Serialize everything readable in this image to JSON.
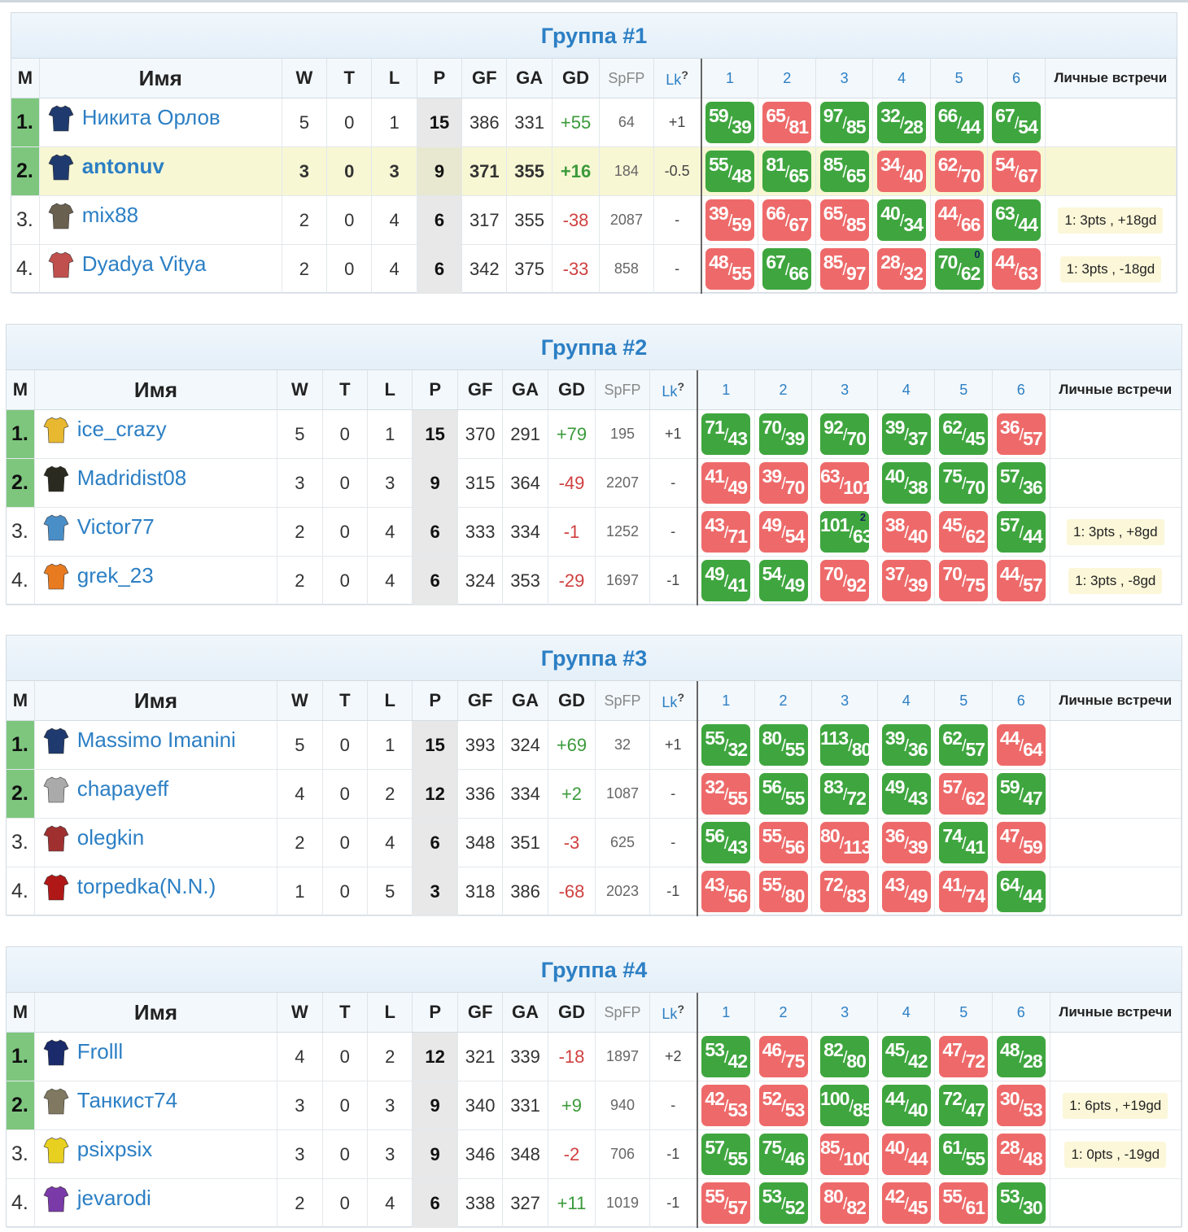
{
  "headers": {
    "m": "M",
    "name": "Имя",
    "w": "W",
    "t": "T",
    "l": "L",
    "p": "P",
    "gf": "GF",
    "ga": "GA",
    "gd": "GD",
    "spfp": "SpFP",
    "lk": "Lk",
    "lk_q": "?",
    "m1": "1",
    "m2": "2",
    "m3": "3",
    "m4": "4",
    "m5": "5",
    "m6": "6",
    "lv": "Личные встречи"
  },
  "groups": [
    {
      "title": "Группа #1",
      "rows": [
        {
          "pos": "1.",
          "q": true,
          "name": "Никита Орлов",
          "av": "#1f3a6e",
          "w": "5",
          "t": "0",
          "l": "1",
          "p": "15",
          "gf": "386",
          "ga": "331",
          "gd": "+55",
          "spfp": "64",
          "lk": "+1",
          "lv": "",
          "m": [
            [
              "59",
              "39",
              "w",
              ""
            ],
            [
              "65",
              "81",
              "l",
              ""
            ],
            [
              "97",
              "85",
              "w",
              ""
            ],
            [
              "32",
              "28",
              "w",
              ""
            ],
            [
              "66",
              "44",
              "w",
              ""
            ],
            [
              "67",
              "54",
              "w",
              ""
            ]
          ]
        },
        {
          "pos": "2.",
          "q": true,
          "hl": true,
          "name": "antonuv",
          "av": "#1f3a6e",
          "w": "3",
          "t": "0",
          "l": "3",
          "p": "9",
          "gf": "371",
          "ga": "355",
          "gd": "+16",
          "spfp": "184",
          "lk": "-0.5",
          "lv": "",
          "m": [
            [
              "55",
              "48",
              "w",
              ""
            ],
            [
              "81",
              "65",
              "w",
              ""
            ],
            [
              "85",
              "65",
              "w",
              ""
            ],
            [
              "34",
              "40",
              "l",
              ""
            ],
            [
              "62",
              "70",
              "l",
              ""
            ],
            [
              "54",
              "67",
              "l",
              ""
            ]
          ]
        },
        {
          "pos": "3.",
          "q": false,
          "name": "mix88",
          "av": "#6a6050",
          "w": "2",
          "t": "0",
          "l": "4",
          "p": "6",
          "gf": "317",
          "ga": "355",
          "gd": "-38",
          "spfp": "2087",
          "lk": "-",
          "lv": "1: 3pts , +18gd",
          "m": [
            [
              "39",
              "59",
              "l",
              ""
            ],
            [
              "66",
              "67",
              "l",
              ""
            ],
            [
              "65",
              "85",
              "l",
              ""
            ],
            [
              "40",
              "34",
              "w",
              ""
            ],
            [
              "44",
              "66",
              "l",
              ""
            ],
            [
              "63",
              "44",
              "w",
              ""
            ]
          ]
        },
        {
          "pos": "4.",
          "q": false,
          "name": "Dyadya Vitya",
          "av": "#c0504d",
          "w": "2",
          "t": "0",
          "l": "4",
          "p": "6",
          "gf": "342",
          "ga": "375",
          "gd": "-33",
          "spfp": "858",
          "lk": "-",
          "lv": "1: 3pts , -18gd",
          "m": [
            [
              "48",
              "55",
              "l",
              ""
            ],
            [
              "67",
              "66",
              "w",
              ""
            ],
            [
              "85",
              "97",
              "l",
              ""
            ],
            [
              "28",
              "32",
              "l",
              ""
            ],
            [
              "70",
              "62",
              "w",
              "0"
            ],
            [
              "44",
              "63",
              "l",
              ""
            ]
          ]
        }
      ]
    },
    {
      "title": "Группа #2",
      "rows": [
        {
          "pos": "1.",
          "q": true,
          "name": "ice_crazy",
          "av": "#e8b830",
          "w": "5",
          "t": "0",
          "l": "1",
          "p": "15",
          "gf": "370",
          "ga": "291",
          "gd": "+79",
          "spfp": "195",
          "lk": "+1",
          "lv": "",
          "m": [
            [
              "71",
              "43",
              "w",
              ""
            ],
            [
              "70",
              "39",
              "w",
              ""
            ],
            [
              "92",
              "70",
              "w",
              ""
            ],
            [
              "39",
              "37",
              "w",
              ""
            ],
            [
              "62",
              "45",
              "w",
              ""
            ],
            [
              "36",
              "57",
              "l",
              ""
            ]
          ]
        },
        {
          "pos": "2.",
          "q": true,
          "name": "Madridist08",
          "av": "#2a2a20",
          "w": "3",
          "t": "0",
          "l": "3",
          "p": "9",
          "gf": "315",
          "ga": "364",
          "gd": "-49",
          "spfp": "2207",
          "lk": "-",
          "lv": "",
          "m": [
            [
              "41",
              "49",
              "l",
              ""
            ],
            [
              "39",
              "70",
              "l",
              ""
            ],
            [
              "63",
              "101",
              "l",
              ""
            ],
            [
              "40",
              "38",
              "w",
              ""
            ],
            [
              "75",
              "70",
              "w",
              ""
            ],
            [
              "57",
              "36",
              "w",
              ""
            ]
          ]
        },
        {
          "pos": "3.",
          "q": false,
          "name": "Victor77",
          "av": "#4a8ec8",
          "w": "2",
          "t": "0",
          "l": "4",
          "p": "6",
          "gf": "333",
          "ga": "334",
          "gd": "-1",
          "spfp": "1252",
          "lk": "-",
          "lv": "1: 3pts , +8gd",
          "m": [
            [
              "43",
              "71",
              "l",
              ""
            ],
            [
              "49",
              "54",
              "l",
              ""
            ],
            [
              "101",
              "63",
              "w",
              "2"
            ],
            [
              "38",
              "40",
              "l",
              ""
            ],
            [
              "45",
              "62",
              "l",
              ""
            ],
            [
              "57",
              "44",
              "w",
              ""
            ]
          ]
        },
        {
          "pos": "4.",
          "q": false,
          "name": "grek_23",
          "av": "#e87a20",
          "w": "2",
          "t": "0",
          "l": "4",
          "p": "6",
          "gf": "324",
          "ga": "353",
          "gd": "-29",
          "spfp": "1697",
          "lk": "-1",
          "lv": "1: 3pts , -8gd",
          "m": [
            [
              "49",
              "41",
              "w",
              ""
            ],
            [
              "54",
              "49",
              "w",
              ""
            ],
            [
              "70",
              "92",
              "l",
              ""
            ],
            [
              "37",
              "39",
              "l",
              ""
            ],
            [
              "70",
              "75",
              "l",
              ""
            ],
            [
              "44",
              "57",
              "l",
              ""
            ]
          ]
        }
      ]
    },
    {
      "title": "Группа #3",
      "rows": [
        {
          "pos": "1.",
          "q": true,
          "name": "Massimo Imanini",
          "av": "#1f3a6e",
          "w": "5",
          "t": "0",
          "l": "1",
          "p": "15",
          "gf": "393",
          "ga": "324",
          "gd": "+69",
          "spfp": "32",
          "lk": "+1",
          "lv": "",
          "m": [
            [
              "55",
              "32",
              "w",
              ""
            ],
            [
              "80",
              "55",
              "w",
              ""
            ],
            [
              "113",
              "80",
              "w",
              ""
            ],
            [
              "39",
              "36",
              "w",
              ""
            ],
            [
              "62",
              "57",
              "w",
              ""
            ],
            [
              "44",
              "64",
              "l",
              ""
            ]
          ]
        },
        {
          "pos": "2.",
          "q": true,
          "name": "chapayeff",
          "av": "#aaaaaa",
          "w": "4",
          "t": "0",
          "l": "2",
          "p": "12",
          "gf": "336",
          "ga": "334",
          "gd": "+2",
          "spfp": "1087",
          "lk": "-",
          "lv": "",
          "m": [
            [
              "32",
              "55",
              "l",
              ""
            ],
            [
              "56",
              "55",
              "w",
              ""
            ],
            [
              "83",
              "72",
              "w",
              ""
            ],
            [
              "49",
              "43",
              "w",
              ""
            ],
            [
              "57",
              "62",
              "l",
              ""
            ],
            [
              "59",
              "47",
              "w",
              ""
            ]
          ]
        },
        {
          "pos": "3.",
          "q": false,
          "name": "olegkin",
          "av": "#a03030",
          "w": "2",
          "t": "0",
          "l": "4",
          "p": "6",
          "gf": "348",
          "ga": "351",
          "gd": "-3",
          "spfp": "625",
          "lk": "-",
          "lv": "",
          "m": [
            [
              "56",
              "43",
              "w",
              ""
            ],
            [
              "55",
              "56",
              "l",
              ""
            ],
            [
              "80",
              "113",
              "l",
              ""
            ],
            [
              "36",
              "39",
              "l",
              ""
            ],
            [
              "74",
              "41",
              "w",
              ""
            ],
            [
              "47",
              "59",
              "l",
              ""
            ]
          ]
        },
        {
          "pos": "4.",
          "q": false,
          "name": "torpedka(N.N.)",
          "av": "#b01818",
          "w": "1",
          "t": "0",
          "l": "5",
          "p": "3",
          "gf": "318",
          "ga": "386",
          "gd": "-68",
          "spfp": "2023",
          "lk": "-1",
          "lv": "",
          "m": [
            [
              "43",
              "56",
              "l",
              ""
            ],
            [
              "55",
              "80",
              "l",
              ""
            ],
            [
              "72",
              "83",
              "l",
              ""
            ],
            [
              "43",
              "49",
              "l",
              ""
            ],
            [
              "41",
              "74",
              "l",
              ""
            ],
            [
              "64",
              "44",
              "w",
              ""
            ]
          ]
        }
      ]
    },
    {
      "title": "Группа #4",
      "rows": [
        {
          "pos": "1.",
          "q": true,
          "name": "Frolll",
          "av": "#1a2a6a",
          "w": "4",
          "t": "0",
          "l": "2",
          "p": "12",
          "gf": "321",
          "ga": "339",
          "gd": "-18",
          "spfp": "1897",
          "lk": "+2",
          "lv": "",
          "m": [
            [
              "53",
              "42",
              "w",
              ""
            ],
            [
              "46",
              "75",
              "l",
              ""
            ],
            [
              "82",
              "80",
              "w",
              ""
            ],
            [
              "45",
              "42",
              "w",
              ""
            ],
            [
              "47",
              "72",
              "l",
              ""
            ],
            [
              "48",
              "28",
              "w",
              ""
            ]
          ]
        },
        {
          "pos": "2.",
          "q": true,
          "name": "Танкист74",
          "av": "#807860",
          "w": "3",
          "t": "0",
          "l": "3",
          "p": "9",
          "gf": "340",
          "ga": "331",
          "gd": "+9",
          "spfp": "940",
          "lk": "-",
          "lv": "1: 6pts , +19gd",
          "m": [
            [
              "42",
              "53",
              "l",
              ""
            ],
            [
              "52",
              "53",
              "l",
              ""
            ],
            [
              "100",
              "85",
              "w",
              ""
            ],
            [
              "44",
              "40",
              "w",
              ""
            ],
            [
              "72",
              "47",
              "w",
              ""
            ],
            [
              "30",
              "53",
              "l",
              ""
            ]
          ]
        },
        {
          "pos": "3.",
          "q": false,
          "name": "psixpsix",
          "av": "#e8d020",
          "w": "3",
          "t": "0",
          "l": "3",
          "p": "9",
          "gf": "346",
          "ga": "348",
          "gd": "-2",
          "spfp": "706",
          "lk": "-1",
          "lv": "1: 0pts , -19gd",
          "m": [
            [
              "57",
              "55",
              "w",
              ""
            ],
            [
              "75",
              "46",
              "w",
              ""
            ],
            [
              "85",
              "100",
              "l",
              ""
            ],
            [
              "40",
              "44",
              "l",
              ""
            ],
            [
              "61",
              "55",
              "w",
              ""
            ],
            [
              "28",
              "48",
              "l",
              ""
            ]
          ]
        },
        {
          "pos": "4.",
          "q": false,
          "name": "jevarodi",
          "av": "#7a3aa8",
          "w": "2",
          "t": "0",
          "l": "4",
          "p": "6",
          "gf": "338",
          "ga": "327",
          "gd": "+11",
          "spfp": "1019",
          "lk": "-1",
          "lv": "",
          "m": [
            [
              "55",
              "57",
              "l",
              ""
            ],
            [
              "53",
              "52",
              "w",
              ""
            ],
            [
              "80",
              "82",
              "l",
              ""
            ],
            [
              "42",
              "45",
              "l",
              ""
            ],
            [
              "55",
              "61",
              "l",
              ""
            ],
            [
              "53",
              "30",
              "w",
              ""
            ]
          ]
        }
      ]
    }
  ]
}
